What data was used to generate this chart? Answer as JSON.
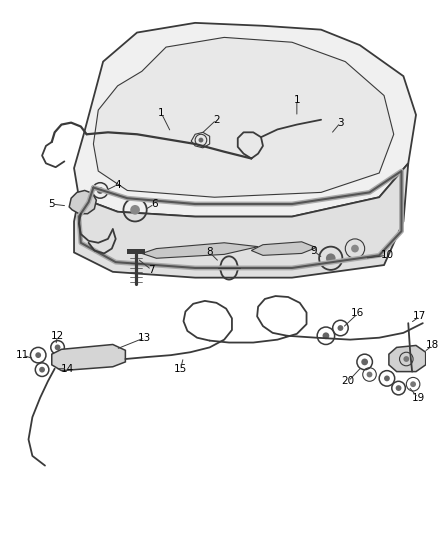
{
  "bg_color": "#ffffff",
  "line_color": "#3a3a3a",
  "label_color": "#000000",
  "label_fontsize": 7.5
}
